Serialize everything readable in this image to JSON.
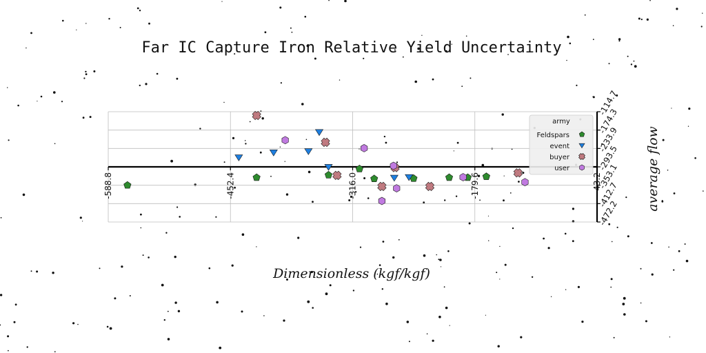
{
  "chart_data": {
    "type": "scatter",
    "title": "Far IC Capture Iron Relative Yield Uncertainty",
    "xlabel": "Dimensionless (kgf/kgf)",
    "ylabel": "average flow",
    "xlim": [
      -588.8,
      43.2
    ],
    "ylim": [
      -472.2,
      -114.7
    ],
    "xticks": [
      "-588.8",
      "-452.4",
      "-316.0",
      "-179.6",
      "43.2"
    ],
    "yticks": [
      "-114.7",
      "-174.3",
      "-233.9",
      "-293.5",
      "-353.1",
      "-412.7",
      "-472.2"
    ],
    "grid": true,
    "legend": {
      "title": "army",
      "location": "top-right"
    },
    "series": [
      {
        "name": "Feldspars",
        "marker": "pentagon",
        "color": "#2e8b2e",
        "points": [
          [
            -564.0,
            -353.1
          ],
          [
            -397.0,
            -328.0
          ],
          [
            -304.0,
            -320.0
          ],
          [
            -264.0,
            -300.0
          ],
          [
            -245.0,
            -332.0
          ],
          [
            -194.0,
            -331.0
          ],
          [
            -148.0,
            -328.0
          ],
          [
            -124.0,
            -328.0
          ],
          [
            -100.0,
            -325.0
          ]
        ]
      },
      {
        "name": "event",
        "marker": "triangle-down",
        "color": "#1e7fe0",
        "points": [
          [
            -420.0,
            -263.0
          ],
          [
            -375.0,
            -247.0
          ],
          [
            -330.0,
            -243.0
          ],
          [
            -316.0,
            -181.0
          ],
          [
            -304.0,
            -294.0
          ],
          [
            -219.0,
            -329.0
          ],
          [
            -200.0,
            -327.0
          ]
        ]
      },
      {
        "name": "buyer",
        "marker": "x",
        "color": "#c07a80",
        "points": [
          [
            -397.0,
            -127.0
          ],
          [
            -308.0,
            -214.0
          ],
          [
            -293.0,
            -321.0
          ],
          [
            -235.0,
            -357.0
          ],
          [
            -218.0,
            -296.0
          ],
          [
            -173.0,
            -357.0
          ],
          [
            -59.0,
            -313.0
          ]
        ]
      },
      {
        "name": "user",
        "marker": "hexagon",
        "color": "#c07ae0",
        "points": [
          [
            -360.0,
            -207.0
          ],
          [
            -258.0,
            -233.0
          ],
          [
            -220.0,
            -290.0
          ],
          [
            -235.0,
            -404.0
          ],
          [
            -216.0,
            -363.0
          ],
          [
            -130.0,
            -327.0
          ],
          [
            -50.0,
            -343.0
          ]
        ]
      }
    ]
  }
}
